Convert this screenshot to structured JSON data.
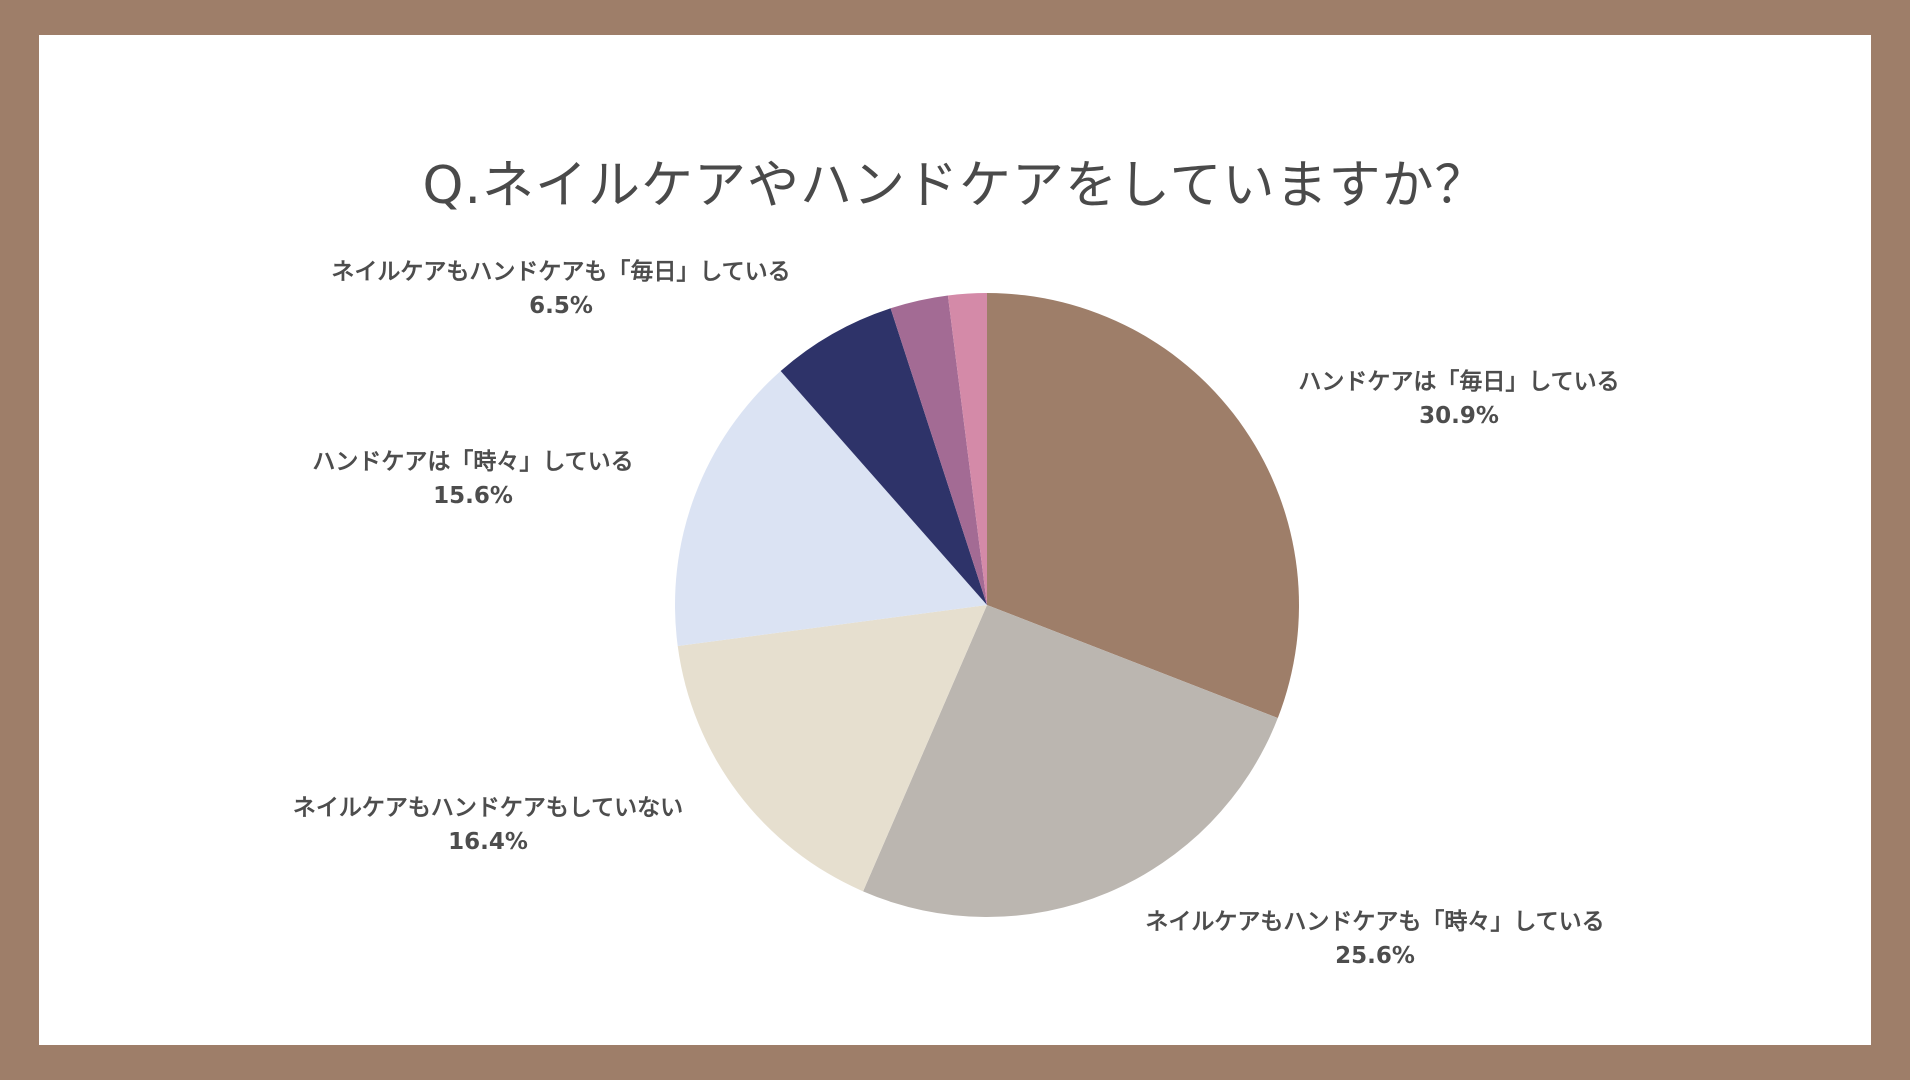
{
  "chart_data": {
    "type": "pie",
    "title": "Q.ネイルケアやハンドケアをしていますか？",
    "start_angle_deg": 0,
    "direction": "clockwise",
    "slices": [
      {
        "label": "ハンドケアは「毎日」している",
        "value": 30.9,
        "value_label": "30.9%",
        "color": "#9e7e69"
      },
      {
        "label": "ネイルケアもハンドケアも「時々」している",
        "value": 25.6,
        "value_label": "25.6%",
        "color": "#bbb6b0"
      },
      {
        "label": "ネイルケアもハンドケアもしていない",
        "value": 16.4,
        "value_label": "16.4%",
        "color": "#e6dfcf"
      },
      {
        "label": "ハンドケアは「時々」している",
        "value": 15.6,
        "value_label": "15.6%",
        "color": "#dbe3f3"
      },
      {
        "label": "ネイルケアもハンドケアも「毎日」している",
        "value": 6.5,
        "value_label": "6.5%",
        "color": "#2e3369"
      },
      {
        "label": "",
        "value": 3.0,
        "value_label": "",
        "color": "#a36b94"
      },
      {
        "label": "",
        "value": 2.0,
        "value_label": "",
        "color": "#d48aa8"
      }
    ]
  },
  "theme": {
    "frame_color": "#9e7e69",
    "background": "#ffffff",
    "text_color": "#4d4d4d"
  }
}
